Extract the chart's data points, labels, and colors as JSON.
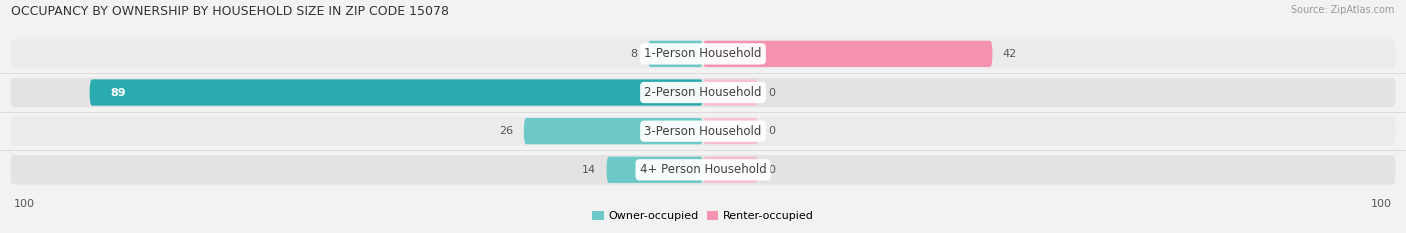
{
  "title": "OCCUPANCY BY OWNERSHIP BY HOUSEHOLD SIZE IN ZIP CODE 15078",
  "source": "Source: ZipAtlas.com",
  "categories": [
    "1-Person Household",
    "2-Person Household",
    "3-Person Household",
    "4+ Person Household"
  ],
  "owner_values": [
    8,
    89,
    26,
    14
  ],
  "renter_values": [
    42,
    0,
    0,
    0
  ],
  "renter_stub": 8,
  "owner_color": "#6dc8c8",
  "owner_color_2": "#2aabb0",
  "renter_color": "#f593ae",
  "renter_stub_color": "#f8c0cf",
  "bg_color": "#f2f2f2",
  "bar_row_color": "#e8e8e8",
  "bar_row_color_alt": "#e0e0e0",
  "axis_max": 100,
  "legend_labels": [
    "Owner-occupied",
    "Renter-occupied"
  ],
  "figsize": [
    14.06,
    2.33
  ],
  "dpi": 100,
  "label_fontsize": 8.5,
  "title_fontsize": 9,
  "value_fontsize": 8
}
